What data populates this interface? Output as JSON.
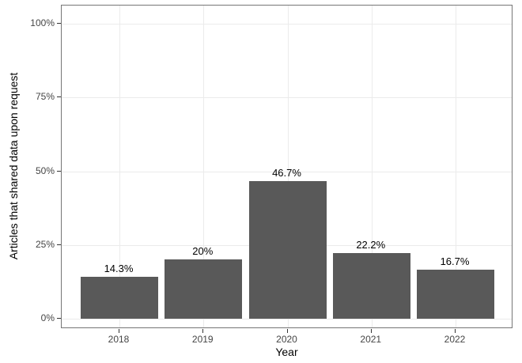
{
  "chart_data": {
    "type": "bar",
    "title": "",
    "xlabel": "Year",
    "ylabel": "Articles that shared data upon request",
    "categories": [
      "2018",
      "2019",
      "2020",
      "2021",
      "2022"
    ],
    "values": [
      14.3,
      20,
      46.7,
      22.2,
      16.7
    ],
    "value_labels": [
      "14.3%",
      "20%",
      "46.7%",
      "22.2%",
      "16.7%"
    ],
    "y_ticks": [
      0,
      25,
      50,
      75,
      100
    ],
    "y_tick_labels": [
      "0%",
      "25%",
      "50%",
      "75%",
      "100%"
    ],
    "ylim": [
      0,
      106
    ],
    "grid": "major-only",
    "legend_position": "none",
    "colors": {
      "bar_fill": "#595959",
      "panel_background": "#ffffff",
      "figure_background": "#ffffff",
      "panel_border": "#767676",
      "gridline": "#ebebeb",
      "tick_mark": "#333333",
      "tick_label": "#454545",
      "axis_title": "#000000",
      "bar_value_label": "#000000"
    }
  }
}
